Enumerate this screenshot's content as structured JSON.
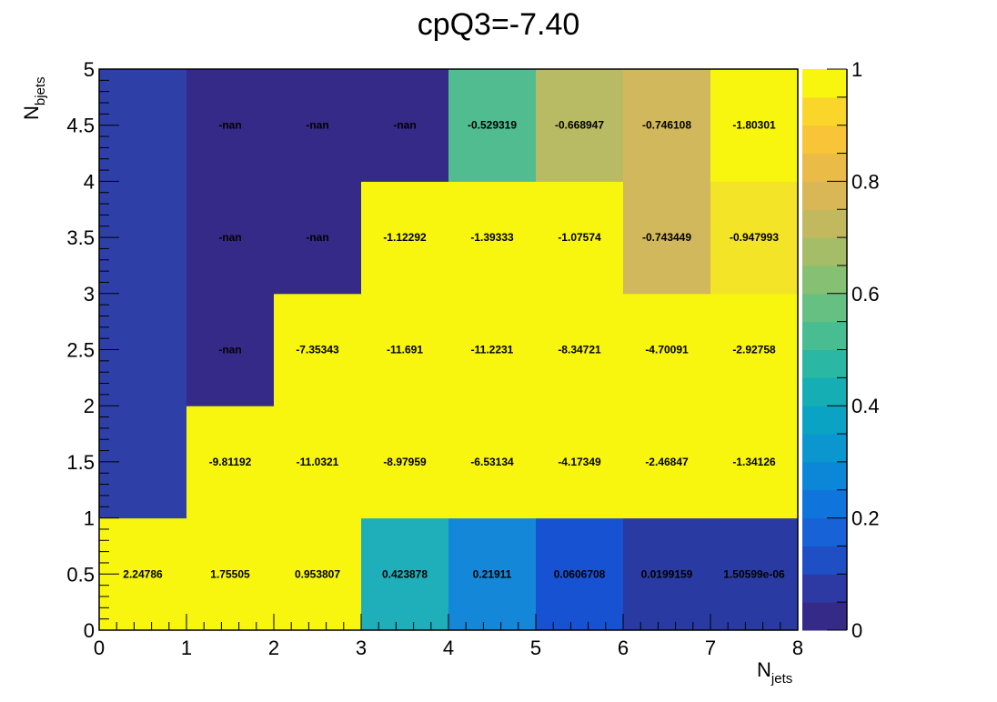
{
  "chart_data": {
    "type": "heatmap",
    "title": "cpQ3=-7.40",
    "xlabel": "N",
    "xlabel_sub": "jets",
    "ylabel": "N",
    "ylabel_sub": "bjets",
    "xlim": [
      0,
      8
    ],
    "ylim": [
      0,
      5
    ],
    "x_edges": [
      0,
      1,
      2,
      3,
      4,
      5,
      6,
      7,
      8
    ],
    "y_edges": [
      0,
      1,
      2,
      3,
      4,
      5
    ],
    "x_tick_labels": [
      "0",
      "1",
      "2",
      "3",
      "4",
      "5",
      "6",
      "7",
      "8"
    ],
    "y_tick_labels": [
      "0",
      "0.5",
      "1",
      "1.5",
      "2",
      "2.5",
      "3",
      "3.5",
      "4",
      "4.5",
      "5"
    ],
    "colorbar": {
      "min": 0,
      "max": 1,
      "tick_labels": [
        "0",
        "0.2",
        "0.4",
        "0.6",
        "0.8",
        "1"
      ],
      "palette": [
        "#352a87",
        "#2d3aa3",
        "#1f4fc4",
        "#1662d6",
        "#0f74db",
        "#0c86d6",
        "#0b96cf",
        "#0aa3c3",
        "#15aeb4",
        "#2ab7a3",
        "#47bd91",
        "#66c081",
        "#86c073",
        "#a5bd67",
        "#c2b95e",
        "#d9b756",
        "#eabb46",
        "#f7c537",
        "#fad62a",
        "#f8f50f"
      ],
      "grid": false
    },
    "grid": false,
    "rows": [
      {
        "y_bin": [
          0,
          1
        ],
        "labels": [
          "2.24786",
          "1.75505",
          "0.953807",
          "0.423878",
          "0.21911",
          "0.0606708",
          "0.0199159",
          "1.50599e-06"
        ],
        "colors": [
          "#f8f50f",
          "#f8f50f",
          "#f8f50f",
          "#1fafbb",
          "#1587d9",
          "#1752d2",
          "#2a3aa3",
          "#2a3aa3"
        ]
      },
      {
        "y_bin": [
          1,
          2
        ],
        "labels": [
          "",
          "-9.81192",
          "-11.0321",
          "-8.97959",
          "-6.53134",
          "-4.17349",
          "-2.46847",
          "-1.34126"
        ],
        "colors": [
          "#2e40a8",
          "#f8f50f",
          "#f8f50f",
          "#f8f50f",
          "#f8f50f",
          "#f8f50f",
          "#f8f50f",
          "#f8f50f"
        ]
      },
      {
        "y_bin": [
          2,
          3
        ],
        "labels": [
          "",
          "-nan",
          "-7.35343",
          "-11.691",
          "-11.2231",
          "-8.34721",
          "-4.70091",
          "-2.92758"
        ],
        "colors": [
          "#2e40a8",
          "#352a87",
          "#f8f50f",
          "#f8f50f",
          "#f8f50f",
          "#f8f50f",
          "#f8f50f",
          "#f8f50f"
        ]
      },
      {
        "y_bin": [
          3,
          4
        ],
        "labels": [
          "",
          "-nan",
          "-nan",
          "-1.12292",
          "-1.39333",
          "-1.07574",
          "-0.743449",
          "-0.947993"
        ],
        "colors": [
          "#2e40a8",
          "#352a87",
          "#352a87",
          "#f8f50f",
          "#f8f50f",
          "#f8f50f",
          "#d2b85c",
          "#f3e428"
        ]
      },
      {
        "y_bin": [
          4,
          5
        ],
        "labels": [
          "",
          "-nan",
          "-nan",
          "-nan",
          "-0.529319",
          "-0.668947",
          "-0.746108",
          "-1.80301"
        ],
        "colors": [
          "#2e40a8",
          "#352a87",
          "#352a87",
          "#352a87",
          "#50bc8f",
          "#b8bb64",
          "#d2b85c",
          "#f8f50f"
        ]
      }
    ]
  }
}
